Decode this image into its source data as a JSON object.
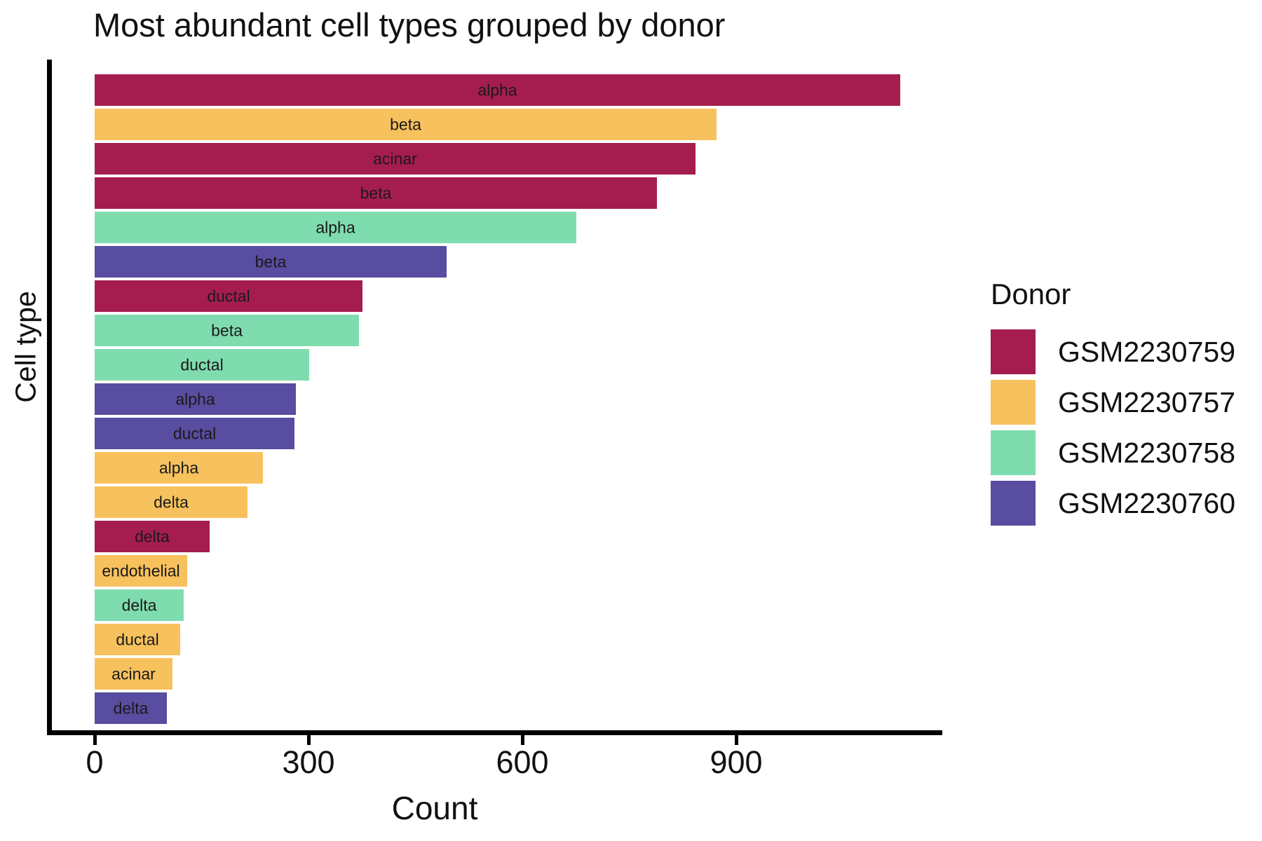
{
  "chart_data": {
    "type": "bar",
    "orientation": "horizontal",
    "title": "Most abundant cell types grouped by donor",
    "xlabel": "Count",
    "ylabel": "Cell type",
    "xlim": [
      0,
      1190
    ],
    "x_ticks": [
      0,
      300,
      600,
      900
    ],
    "grid": false,
    "bar_label_position": "center-inside",
    "legend": {
      "title": "Donor",
      "position": "right",
      "entries": [
        {
          "name": "GSM2230759",
          "color": "#A51D4E"
        },
        {
          "name": "GSM2230757",
          "color": "#F7C15D"
        },
        {
          "name": "GSM2230758",
          "color": "#7FDCAE"
        },
        {
          "name": "GSM2230760",
          "color": "#584DA0"
        }
      ]
    },
    "bars": [
      {
        "cell_type": "alpha",
        "donor": "GSM2230759",
        "count": 1130
      },
      {
        "cell_type": "beta",
        "donor": "GSM2230757",
        "count": 872
      },
      {
        "cell_type": "acinar",
        "donor": "GSM2230759",
        "count": 843
      },
      {
        "cell_type": "beta",
        "donor": "GSM2230759",
        "count": 789
      },
      {
        "cell_type": "alpha",
        "donor": "GSM2230758",
        "count": 676
      },
      {
        "cell_type": "beta",
        "donor": "GSM2230760",
        "count": 494
      },
      {
        "cell_type": "ductal",
        "donor": "GSM2230759",
        "count": 376
      },
      {
        "cell_type": "beta",
        "donor": "GSM2230758",
        "count": 371
      },
      {
        "cell_type": "ductal",
        "donor": "GSM2230758",
        "count": 301
      },
      {
        "cell_type": "alpha",
        "donor": "GSM2230760",
        "count": 282
      },
      {
        "cell_type": "ductal",
        "donor": "GSM2230760",
        "count": 280
      },
      {
        "cell_type": "alpha",
        "donor": "GSM2230757",
        "count": 236
      },
      {
        "cell_type": "delta",
        "donor": "GSM2230757",
        "count": 214
      },
      {
        "cell_type": "delta",
        "donor": "GSM2230759",
        "count": 161
      },
      {
        "cell_type": "endothelial",
        "donor": "GSM2230757",
        "count": 130
      },
      {
        "cell_type": "delta",
        "donor": "GSM2230758",
        "count": 125
      },
      {
        "cell_type": "ductal",
        "donor": "GSM2230757",
        "count": 120
      },
      {
        "cell_type": "acinar",
        "donor": "GSM2230757",
        "count": 109
      },
      {
        "cell_type": "delta",
        "donor": "GSM2230760",
        "count": 101
      }
    ]
  }
}
